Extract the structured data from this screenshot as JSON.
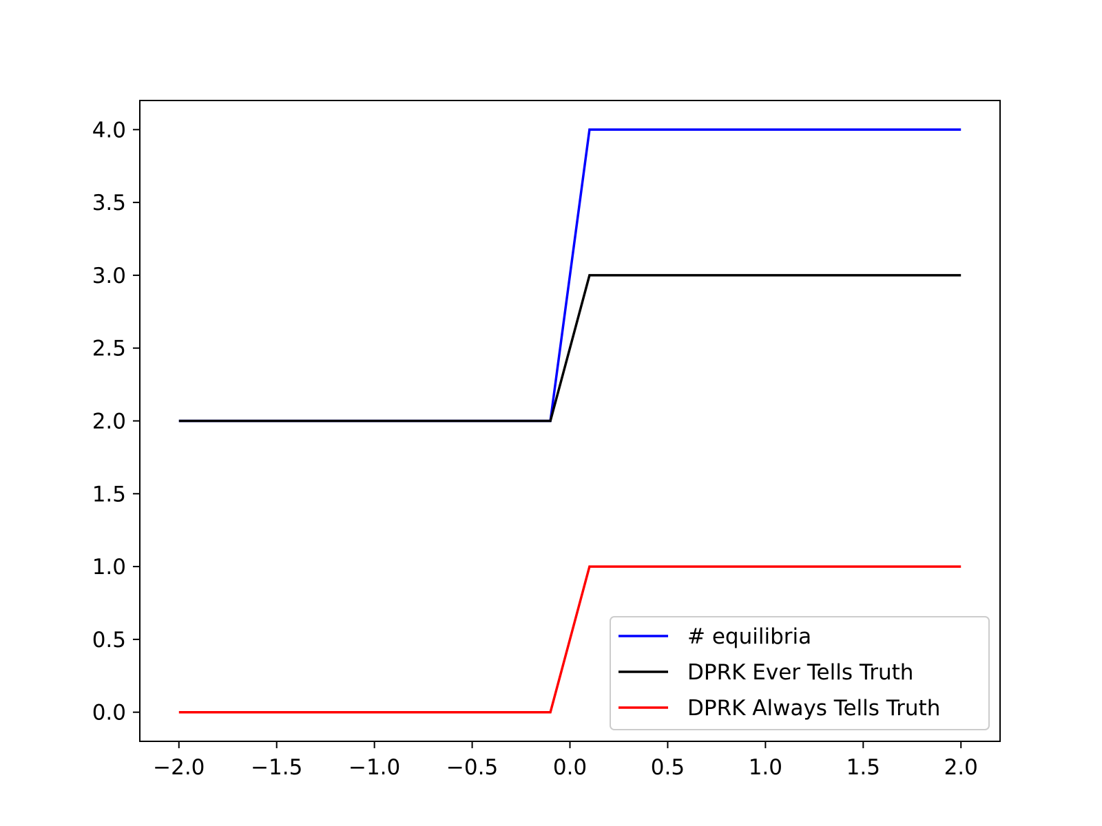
{
  "chart_data": {
    "type": "line",
    "title": "",
    "xlabel": "",
    "ylabel": "",
    "xlim": [
      -2.2,
      2.2
    ],
    "ylim": [
      -0.2,
      4.2
    ],
    "xticks": [
      -2.0,
      -1.5,
      -1.0,
      -0.5,
      0.0,
      0.5,
      1.0,
      1.5,
      2.0
    ],
    "xtick_labels": [
      "−2.0",
      "−1.5",
      "−1.0",
      "−0.5",
      "0.0",
      "0.5",
      "1.0",
      "1.5",
      "2.0"
    ],
    "yticks": [
      0.0,
      0.5,
      1.0,
      1.5,
      2.0,
      2.5,
      3.0,
      3.5,
      4.0
    ],
    "ytick_labels": [
      "0.0",
      "0.5",
      "1.0",
      "1.5",
      "2.0",
      "2.5",
      "3.0",
      "3.5",
      "4.0"
    ],
    "grid": false,
    "legend_position": "bottom-right",
    "series": [
      {
        "name": "# equilibria",
        "color": "#0000ff",
        "x": [
          -2.0,
          -0.1,
          0.1,
          2.0
        ],
        "y": [
          2.0,
          2.0,
          4.0,
          4.0
        ]
      },
      {
        "name": "DPRK Ever Tells Truth",
        "color": "#000000",
        "x": [
          -2.0,
          -0.1,
          0.1,
          2.0
        ],
        "y": [
          2.0,
          2.0,
          3.0,
          3.0
        ]
      },
      {
        "name": "DPRK Always Tells Truth",
        "color": "#ff0000",
        "x": [
          -2.0,
          -0.1,
          0.1,
          2.0
        ],
        "y": [
          0.0,
          0.0,
          1.0,
          1.0
        ]
      }
    ]
  }
}
